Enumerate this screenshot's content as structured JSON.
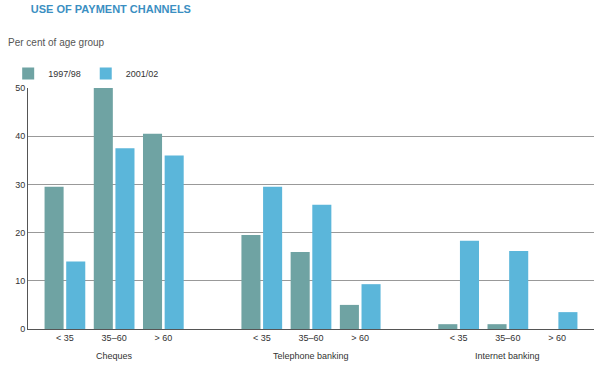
{
  "chart_data": {
    "type": "bar",
    "title": "USE OF PAYMENT CHANNELS",
    "subtitle": "Per cent of age group",
    "categories": [
      [
        "Cheques",
        "< 35"
      ],
      [
        "Cheques",
        "35–60"
      ],
      [
        "Cheques",
        "> 60"
      ],
      [
        "Telephone banking",
        "< 35"
      ],
      [
        "Telephone banking",
        "35–60"
      ],
      [
        "Telephone banking",
        "> 60"
      ],
      [
        "Internet banking",
        "< 35"
      ],
      [
        "Internet banking",
        "35–60"
      ],
      [
        "Internet banking",
        "> 60"
      ]
    ],
    "series": [
      {
        "name": "1997/98",
        "color": "#6fa3a3",
        "values": [
          29.5,
          50,
          40.5,
          19.5,
          16,
          5,
          1,
          1,
          0
        ]
      },
      {
        "name": "2001/02",
        "color": "#5bb6da",
        "values": [
          14,
          37.5,
          36,
          29.5,
          25.8,
          9.3,
          18.3,
          16.2,
          3.5
        ]
      }
    ],
    "ylim": [
      0,
      50
    ],
    "yticks": [
      0,
      10,
      20,
      30,
      40,
      50
    ],
    "grid": true,
    "legend": "top left"
  }
}
